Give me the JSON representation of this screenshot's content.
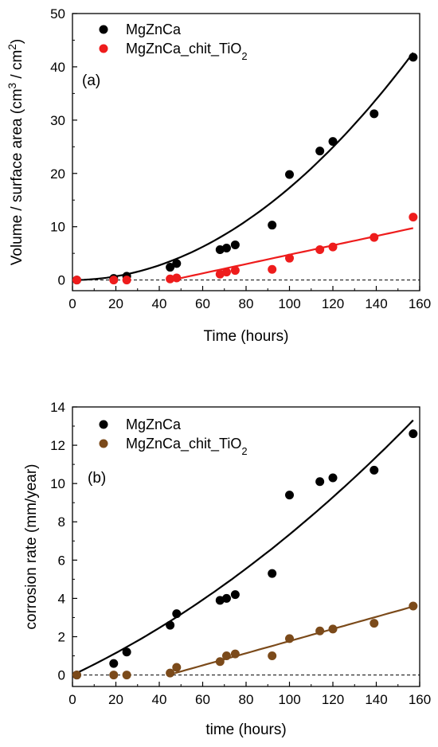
{
  "chart_data": [
    {
      "type": "scatter",
      "panel_label": "(a)",
      "xlabel": "Time (hours)",
      "ylabel": "Volume / surface area (cm³ / cm²)",
      "xlim": [
        0,
        160
      ],
      "ylim": [
        -2,
        50
      ],
      "xticks": [
        0,
        20,
        40,
        60,
        80,
        100,
        120,
        140,
        160
      ],
      "yticks": [
        0,
        10,
        20,
        30,
        40,
        50
      ],
      "grid": false,
      "legend_position": "top-left",
      "reference_line_y": 0,
      "series": [
        {
          "name": "MgZnCa",
          "color": "#000000",
          "x": [
            2,
            19,
            25,
            45,
            48,
            68,
            71,
            75,
            92,
            100,
            114,
            120,
            139,
            157
          ],
          "y": [
            0.0,
            0.3,
            0.7,
            2.4,
            3.1,
            5.7,
            6.0,
            6.6,
            10.3,
            19.8,
            24.2,
            26.0,
            31.2,
            41.8
          ],
          "fit": {
            "kind": "quadratic",
            "x_range": [
              0,
              157
            ],
            "coefficients": [
              0.0,
              0.0,
              0.00173
            ]
          }
        },
        {
          "name": "MgZnCa_chit_TiO₂",
          "color": "#ee1c1c",
          "x": [
            2,
            19,
            25,
            45,
            48,
            68,
            71,
            75,
            92,
            100,
            114,
            120,
            139,
            157
          ],
          "y": [
            0.0,
            0.0,
            0.0,
            0.2,
            0.4,
            1.1,
            1.5,
            1.8,
            2.0,
            4.1,
            5.7,
            6.2,
            8.0,
            11.8
          ],
          "fit": {
            "kind": "linear",
            "x_range": [
              45,
              157
            ],
            "coefficients": [
              -4.0,
              0.0875
            ]
          }
        }
      ]
    },
    {
      "type": "scatter",
      "panel_label": "(b)",
      "xlabel": "time (hours)",
      "ylabel": "corrosion rate (mm/year)",
      "xlim": [
        0,
        160
      ],
      "ylim": [
        -0.6,
        14
      ],
      "xticks": [
        0,
        20,
        40,
        60,
        80,
        100,
        120,
        140,
        160
      ],
      "yticks": [
        0,
        2,
        4,
        6,
        8,
        10,
        12,
        14
      ],
      "grid": false,
      "legend_position": "top-left",
      "reference_line_y": 0,
      "series": [
        {
          "name": "MgZnCa",
          "color": "#000000",
          "x": [
            2,
            19,
            25,
            45,
            48,
            68,
            71,
            75,
            92,
            100,
            114,
            120,
            139,
            157
          ],
          "y": [
            0.0,
            0.6,
            1.2,
            2.6,
            3.2,
            3.9,
            4.0,
            4.2,
            5.3,
            9.4,
            10.1,
            10.3,
            10.7,
            12.6
          ],
          "fit": {
            "kind": "quadratic",
            "x_range": [
              0,
              157
            ],
            "coefficients": [
              0.0,
              0.0535,
              0.000199
            ]
          }
        },
        {
          "name": "MgZnCa_chit_TiO₂",
          "color": "#7b4a1a",
          "x": [
            2,
            19,
            25,
            45,
            48,
            68,
            71,
            75,
            92,
            100,
            114,
            120,
            139,
            157
          ],
          "y": [
            0.0,
            0.0,
            0.0,
            0.1,
            0.4,
            0.7,
            1.0,
            1.1,
            1.0,
            1.9,
            2.3,
            2.4,
            2.7,
            3.6
          ],
          "fit": {
            "kind": "linear",
            "x_range": [
              45,
              157
            ],
            "coefficients": [
              -1.4,
              0.0317
            ]
          }
        }
      ]
    }
  ]
}
